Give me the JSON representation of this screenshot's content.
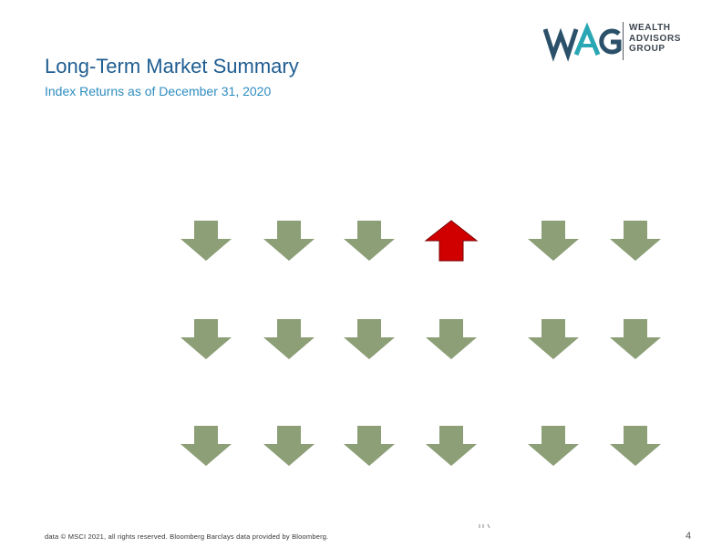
{
  "logo": {
    "mark_text": "WAG",
    "words": [
      "WEALTH",
      "ADVISORS",
      "GROUP"
    ]
  },
  "header": {
    "title": "Long-Term Market Summary",
    "subtitle": "Index Returns as of December 31, 2020"
  },
  "colors": {
    "title": "#1f5d91",
    "subtitle": "#2e8cbf",
    "down_arrow": "#8c9f77",
    "up_arrow": "#d10000",
    "up_arrow_border": "#7a0000",
    "logo_dark": "#2b5069",
    "logo_teal": "#2aa7b4"
  },
  "arrow_grid": {
    "rows": [
      [
        "down",
        "down",
        "down",
        "up",
        "down",
        "down"
      ],
      [
        "down",
        "down",
        "down",
        "down",
        "down",
        "down"
      ],
      [
        "down",
        "down",
        "down",
        "down",
        "down",
        "down"
      ]
    ]
  },
  "footer": {
    "note": "data © MSCI 2021, all rights reserved. Bloomberg Barclays data provided by Bloomberg.",
    "page_number": "4"
  }
}
